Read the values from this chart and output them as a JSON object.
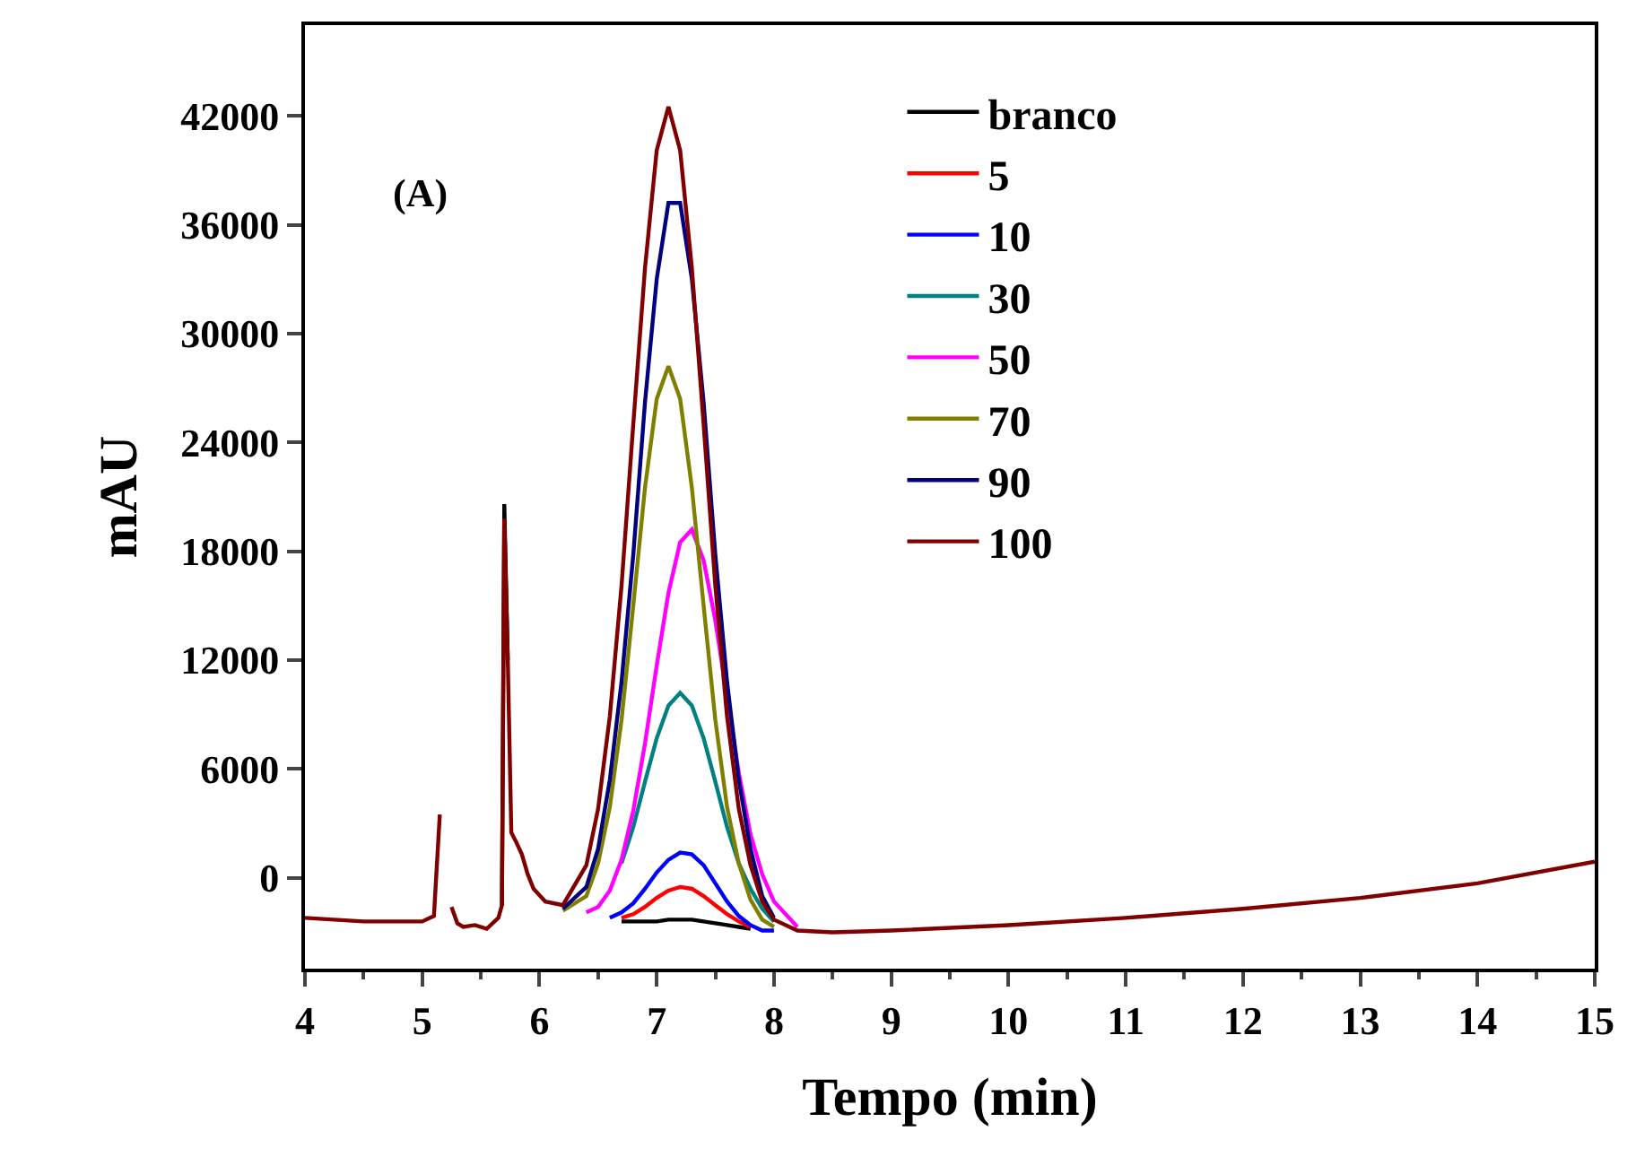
{
  "chart_data": {
    "type": "line",
    "xlabel": "Tempo (min)",
    "ylabel": "mAU",
    "annotations": [
      "(A)"
    ],
    "x": [
      4,
      4.5,
      5,
      5.1,
      5.15,
      5.18,
      5.2,
      5.25,
      5.3,
      5.35,
      5.45,
      5.55,
      5.65,
      5.68,
      5.7,
      5.73,
      5.76,
      5.8,
      5.85,
      5.9,
      5.95,
      6.05,
      6.2,
      6.4,
      6.5,
      6.6,
      6.7,
      6.8,
      6.9,
      7.0,
      7.1,
      7.2,
      7.3,
      7.4,
      7.5,
      7.6,
      7.7,
      7.8,
      7.9,
      8.0,
      8.2,
      8.5,
      9,
      10,
      11,
      12,
      13,
      14,
      15
    ],
    "series": [
      {
        "name": "branco",
        "color": "#000000",
        "values": [
          null,
          null,
          null,
          null,
          null,
          null,
          null,
          null,
          null,
          null,
          null,
          null,
          null,
          -1500,
          20600,
          12000,
          null,
          null,
          null,
          null,
          null,
          null,
          null,
          null,
          null,
          null,
          -2400,
          -2400,
          -2400,
          -2400,
          -2300,
          -2300,
          -2300,
          -2400,
          -2500,
          -2600,
          -2700,
          -2800,
          null,
          null,
          null,
          null,
          null,
          null,
          null,
          null,
          null,
          null,
          null
        ]
      },
      {
        "name": "5",
        "color": "#ff0000",
        "values": [
          null,
          null,
          null,
          null,
          null,
          null,
          null,
          null,
          null,
          null,
          null,
          null,
          null,
          null,
          null,
          null,
          null,
          null,
          null,
          null,
          null,
          null,
          null,
          null,
          null,
          null,
          -2200,
          -2000,
          -1600,
          -1100,
          -700,
          -500,
          -600,
          -1000,
          -1500,
          -2000,
          -2400,
          -2700,
          null,
          null,
          null,
          null,
          null,
          null,
          null,
          null,
          null,
          null,
          null
        ]
      },
      {
        "name": "10",
        "color": "#0000ff",
        "values": [
          null,
          null,
          null,
          null,
          null,
          null,
          null,
          null,
          null,
          null,
          null,
          null,
          null,
          null,
          null,
          null,
          null,
          null,
          null,
          null,
          null,
          null,
          null,
          null,
          null,
          -2200,
          -1900,
          -1400,
          -600,
          300,
          1000,
          1400,
          1300,
          700,
          -300,
          -1300,
          -2100,
          -2600,
          -2900,
          -2900,
          null,
          null,
          null,
          null,
          null,
          null,
          null,
          null,
          null
        ]
      },
      {
        "name": "30",
        "color": "#008080",
        "values": [
          null,
          null,
          null,
          null,
          null,
          null,
          null,
          null,
          null,
          null,
          null,
          null,
          null,
          null,
          null,
          null,
          null,
          null,
          null,
          null,
          null,
          null,
          null,
          null,
          null,
          null,
          800,
          2800,
          5300,
          7700,
          9500,
          10200,
          9500,
          7700,
          5300,
          2800,
          800,
          -600,
          -1700,
          -2400,
          null,
          null,
          null,
          null,
          null,
          null,
          null,
          null,
          null
        ]
      },
      {
        "name": "50",
        "color": "#ff00ff",
        "values": [
          null,
          null,
          null,
          null,
          null,
          null,
          null,
          null,
          null,
          null,
          null,
          null,
          null,
          null,
          null,
          null,
          null,
          null,
          null,
          null,
          null,
          null,
          null,
          -1900,
          -1600,
          -700,
          1000,
          3700,
          7400,
          11700,
          15700,
          18500,
          19200,
          17500,
          14200,
          10000,
          5800,
          2400,
          200,
          -1300,
          -2700,
          null,
          null,
          null,
          null,
          null,
          null,
          null,
          null
        ]
      },
      {
        "name": "70",
        "color": "#808000",
        "values": [
          null,
          null,
          null,
          null,
          null,
          null,
          null,
          null,
          null,
          null,
          null,
          null,
          null,
          null,
          null,
          null,
          null,
          null,
          null,
          null,
          null,
          null,
          -1800,
          -1000,
          800,
          3900,
          8700,
          15000,
          21500,
          26400,
          28200,
          26400,
          21500,
          15000,
          8700,
          3900,
          800,
          -1200,
          -2300,
          -2700,
          null,
          null,
          null,
          null,
          null,
          null,
          null,
          null,
          null
        ]
      },
      {
        "name": "90",
        "color": "#000080",
        "values": [
          null,
          null,
          null,
          null,
          null,
          null,
          null,
          null,
          null,
          null,
          null,
          null,
          null,
          null,
          null,
          null,
          null,
          null,
          null,
          null,
          null,
          null,
          -1700,
          -500,
          1600,
          5400,
          10800,
          17800,
          26200,
          33000,
          37200,
          37200,
          33000,
          26200,
          17800,
          10800,
          5400,
          1600,
          -1000,
          -2200,
          null,
          null,
          null,
          null,
          null,
          null,
          null,
          null,
          null
        ]
      },
      {
        "name": "100",
        "color": "#800000",
        "values": [
          -2200,
          -2400,
          -2400,
          -2100,
          3500,
          null,
          null,
          -1600,
          -2500,
          -2700,
          -2600,
          -2800,
          -2200,
          -1500,
          19800,
          12000,
          2500,
          2000,
          1300,
          200,
          -600,
          -1300,
          -1500,
          700,
          3800,
          8900,
          16100,
          25000,
          33600,
          40100,
          42500,
          40100,
          33600,
          25000,
          16100,
          8900,
          3800,
          700,
          -1300,
          -2300,
          -2900,
          -3000,
          -2900,
          -2600,
          -2200,
          -1700,
          -1100,
          -300,
          900
        ]
      }
    ],
    "xlim": [
      4,
      15
    ],
    "xticks": [
      4,
      5,
      6,
      7,
      8,
      9,
      10,
      11,
      12,
      13,
      14,
      15
    ],
    "ylim": [
      -5000,
      47000
    ],
    "yticks": [
      0,
      6000,
      12000,
      18000,
      24000,
      30000,
      36000,
      42000
    ],
    "legend": "top",
    "marker": "none",
    "line_style": "solid"
  }
}
